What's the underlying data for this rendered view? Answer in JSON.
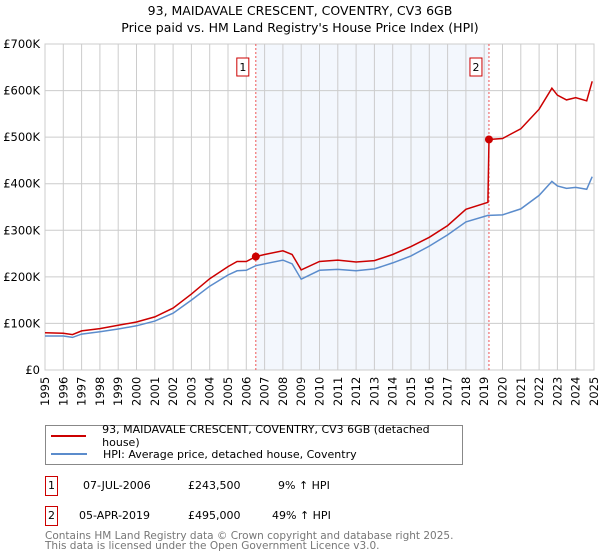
{
  "header": {
    "title": "93, MAIDAVALE CRESCENT, COVENTRY, CV3 6GB",
    "subtitle": "Price paid vs. HM Land Registry's House Price Index (HPI)"
  },
  "chart_data": {
    "type": "line",
    "title": "93, MAIDAVALE CRESCENT, COVENTRY, CV3 6GB — Price paid vs. HM Land Registry's House Price Index (HPI)",
    "xlim": [
      1995,
      2025
    ],
    "ylim": [
      0,
      700000
    ],
    "x_ticks": [
      "1995",
      "1996",
      "1997",
      "1998",
      "1999",
      "2000",
      "2001",
      "2002",
      "2003",
      "2004",
      "2005",
      "2006",
      "2007",
      "2008",
      "2009",
      "2010",
      "2011",
      "2012",
      "2013",
      "2014",
      "2015",
      "2016",
      "2017",
      "2018",
      "2019",
      "2020",
      "2021",
      "2022",
      "2023",
      "2024",
      "2025"
    ],
    "y_ticks": [
      {
        "v": 0,
        "label": "£0"
      },
      {
        "v": 100000,
        "label": "£100K"
      },
      {
        "v": 200000,
        "label": "£200K"
      },
      {
        "v": 300000,
        "label": "£300K"
      },
      {
        "v": 400000,
        "label": "£400K"
      },
      {
        "v": 500000,
        "label": "£500K"
      },
      {
        "v": 600000,
        "label": "£600K"
      },
      {
        "v": 700000,
        "label": "£700K"
      }
    ],
    "grid": true,
    "shaded_range": [
      2006.52,
      2019.26
    ],
    "series": [
      {
        "name": "93, MAIDAVALE CRESCENT, COVENTRY, CV3 6GB (detached house)",
        "color": "#cc0000",
        "x": [
          1995,
          1996,
          1996.5,
          1997,
          1998,
          1999,
          2000,
          2001,
          2002,
          2003,
          2004,
          2005,
          2005.5,
          2006,
          2006.52,
          2007,
          2008,
          2008.5,
          2009,
          2010,
          2011,
          2012,
          2013,
          2014,
          2015,
          2016,
          2017,
          2018,
          2019.2,
          2019.26,
          2020,
          2021,
          2022,
          2022.7,
          2023,
          2023.5,
          2024,
          2024.6,
          2024.9
        ],
        "y": [
          80000,
          79000,
          76000,
          84000,
          89000,
          96000,
          103000,
          114000,
          133000,
          163000,
          196000,
          222000,
          233000,
          233000,
          243500,
          248000,
          256000,
          248000,
          215000,
          233000,
          236000,
          232000,
          235000,
          248000,
          265000,
          285000,
          310000,
          345000,
          360000,
          495000,
          497000,
          518000,
          560000,
          605000,
          590000,
          580000,
          585000,
          578000,
          620000
        ]
      },
      {
        "name": "HPI: Average price, detached house, Coventry",
        "color": "#5b8ccc",
        "x": [
          1995,
          1996,
          1996.5,
          1997,
          1998,
          1999,
          2000,
          2001,
          2002,
          2003,
          2004,
          2005,
          2005.5,
          2006,
          2006.52,
          2007,
          2008,
          2008.5,
          2009,
          2010,
          2011,
          2012,
          2013,
          2014,
          2015,
          2016,
          2017,
          2018,
          2019.2,
          2019.26,
          2020,
          2021,
          2022,
          2022.7,
          2023,
          2023.5,
          2024,
          2024.6,
          2024.9
        ],
        "y": [
          73000,
          73000,
          70000,
          77000,
          82000,
          88000,
          95000,
          105000,
          122000,
          150000,
          180000,
          204000,
          213000,
          214000,
          224000,
          228000,
          236000,
          228000,
          195000,
          214000,
          216000,
          213000,
          217000,
          230000,
          245000,
          266000,
          290000,
          318000,
          332000,
          332000,
          333000,
          346000,
          375000,
          405000,
          395000,
          390000,
          392000,
          388000,
          415000
        ]
      }
    ],
    "annotations": [
      {
        "label": "1",
        "x": 2006.52,
        "y": 243500
      },
      {
        "label": "2",
        "x": 2019.26,
        "y": 495000
      }
    ]
  },
  "legend": {
    "items": [
      {
        "label": "93, MAIDAVALE CRESCENT, COVENTRY, CV3 6GB (detached house)",
        "color": "#cc0000"
      },
      {
        "label": "HPI: Average price, detached house, Coventry",
        "color": "#5b8ccc"
      }
    ]
  },
  "transactions": [
    {
      "num": "1",
      "date": "07-JUL-2006",
      "price": "£243,500",
      "hpi": "9% ↑ HPI"
    },
    {
      "num": "2",
      "date": "05-APR-2019",
      "price": "£495,000",
      "hpi": "49% ↑ HPI"
    }
  ],
  "footer": {
    "line1": "Contains HM Land Registry data © Crown copyright and database right 2025.",
    "line2": "This data is licensed under the Open Government Licence v3.0."
  }
}
